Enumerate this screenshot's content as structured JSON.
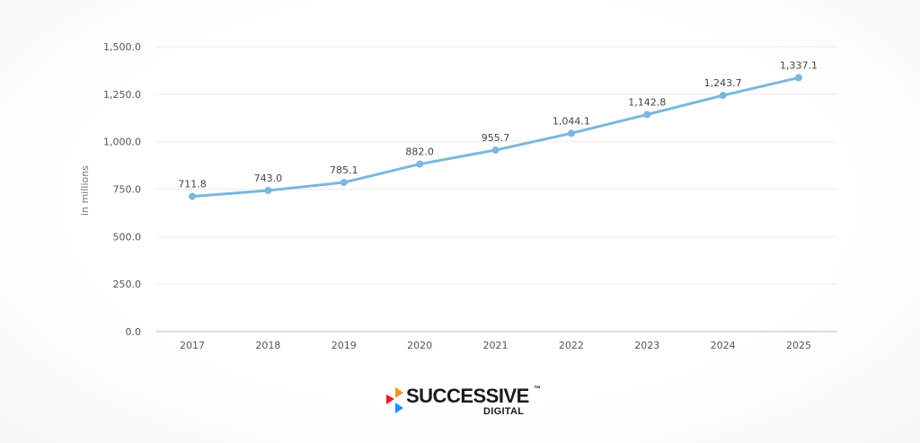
{
  "chart_data": {
    "type": "line",
    "title": "",
    "xlabel": "",
    "ylabel": "in millions",
    "categories": [
      "2017",
      "2018",
      "2019",
      "2020",
      "2021",
      "2022",
      "2023",
      "2024",
      "2025"
    ],
    "values": [
      711.8,
      743.0,
      785.1,
      882.0,
      955.7,
      1044.1,
      1142.8,
      1243.7,
      1337.1
    ],
    "data_labels": [
      "711.8",
      "743.0",
      "785.1",
      "882.0",
      "955.7",
      "1,044.1",
      "1,142.8",
      "1,243.7",
      "1,337.1"
    ],
    "yticks": [
      0,
      250,
      500,
      750,
      1000,
      1250,
      1500
    ],
    "ytick_labels": [
      "0.0",
      "250.0",
      "500.0",
      "750.0",
      "1,000.0",
      "1,250.0",
      "1,500.0"
    ],
    "ylim": [
      0,
      1500
    ],
    "grid": true,
    "legend": "none",
    "line_color": "#7ab8dd",
    "grid_color": "#ececec",
    "axis_color": "#bbbbbb"
  },
  "logo": {
    "name": "SUCCESSIVE",
    "tm": "™",
    "sub": "DIGITAL",
    "colors": [
      "#f7941d",
      "#ed1c24",
      "#1e90ff"
    ]
  }
}
